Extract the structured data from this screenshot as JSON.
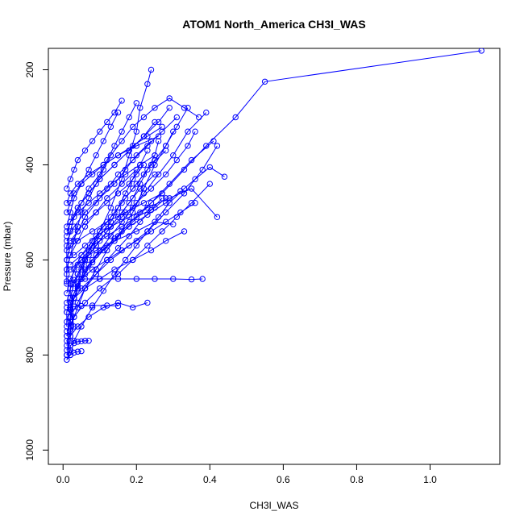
{
  "chart_data": {
    "type": "line",
    "title": "ATOM1 North_America CH3I_WAS",
    "xlabel": "CH3I_WAS",
    "ylabel": "Pressure (mbar)",
    "xlim": [
      -0.04,
      1.19
    ],
    "ylim": [
      1030,
      155
    ],
    "y_reversed": true,
    "x_ticks": [
      0.0,
      0.2,
      0.4,
      0.6,
      0.8,
      1.0
    ],
    "x_tick_labels": [
      "0.0",
      "0.2",
      "0.4",
      "0.6",
      "0.8",
      "1.0"
    ],
    "y_ticks": [
      200,
      400,
      600,
      800,
      1000
    ],
    "y_tick_labels": [
      "200",
      "400",
      "600",
      "800",
      "1000"
    ],
    "grid": false,
    "legend": "none",
    "series_color": "#0000ff",
    "marker": "open-circle",
    "series": [
      {
        "x": [
          0.01,
          0.02,
          0.01,
          0.03,
          0.02,
          0.04,
          0.05,
          0.07,
          0.1,
          0.13,
          0.16,
          0.18,
          0.2,
          0.21,
          0.23,
          0.24
        ],
        "y": [
          810,
          790,
          770,
          740,
          700,
          660,
          610,
          580,
          540,
          490,
          430,
          380,
          330,
          280,
          230,
          200
        ]
      },
      {
        "x": [
          0.01,
          0.02,
          0.02,
          0.04,
          0.06,
          0.09,
          0.12,
          0.15,
          0.19,
          0.22,
          0.25,
          0.28,
          0.31,
          0.34
        ],
        "y": [
          800,
          770,
          740,
          700,
          660,
          620,
          580,
          550,
          500,
          450,
          400,
          360,
          320,
          280
        ]
      },
      {
        "x": [
          0.01,
          0.02,
          0.02,
          0.03,
          0.05,
          0.08,
          0.12,
          0.16,
          0.21,
          0.27,
          0.33,
          0.39,
          0.47,
          0.55,
          1.14
        ],
        "y": [
          790,
          760,
          720,
          680,
          640,
          600,
          570,
          540,
          500,
          460,
          410,
          360,
          300,
          225,
          160
        ]
      },
      {
        "x": [
          0.01,
          0.02,
          0.03,
          0.02,
          0.04,
          0.06,
          0.09,
          0.14,
          0.19,
          0.24,
          0.29,
          0.35,
          0.41
        ],
        "y": [
          780,
          750,
          720,
          690,
          650,
          620,
          590,
          560,
          520,
          480,
          440,
          390,
          350
        ]
      },
      {
        "x": [
          0.01,
          0.02,
          0.02,
          0.03,
          0.05,
          0.07,
          0.1,
          0.13,
          0.16,
          0.19,
          0.22,
          0.26,
          0.3,
          0.34,
          0.39
        ],
        "y": [
          760,
          730,
          700,
          670,
          640,
          610,
          580,
          550,
          520,
          490,
          460,
          420,
          380,
          330,
          290
        ]
      },
      {
        "x": [
          0.02,
          0.03,
          0.05,
          0.08,
          0.11,
          0.14,
          0.17,
          0.2,
          0.23,
          0.26,
          0.29,
          0.33,
          0.36,
          0.4,
          0.44
        ],
        "y": [
          800,
          770,
          740,
          700,
          665,
          630,
          600,
          570,
          540,
          510,
          480,
          450,
          430,
          405,
          425
        ]
      },
      {
        "x": [
          0.01,
          0.01,
          0.02,
          0.02,
          0.03,
          0.05,
          0.08,
          0.11,
          0.14,
          0.17,
          0.2,
          0.24,
          0.28
        ],
        "y": [
          740,
          710,
          680,
          650,
          620,
          590,
          560,
          530,
          500,
          470,
          440,
          400,
          370
        ]
      },
      {
        "x": [
          0.01,
          0.02,
          0.04,
          0.06,
          0.09,
          0.12,
          0.15,
          0.18,
          0.21,
          0.25
        ],
        "y": [
          690,
          660,
          630,
          600,
          570,
          540,
          510,
          480,
          450,
          420
        ]
      },
      {
        "x": [
          0.02,
          0.04,
          0.06,
          0.09,
          0.12,
          0.15,
          0.18,
          0.21,
          0.24,
          0.27
        ],
        "y": [
          720,
          690,
          660,
          630,
          600,
          575,
          550,
          520,
          495,
          470
        ]
      },
      {
        "x": [
          0.01,
          0.02,
          0.03,
          0.04,
          0.06,
          0.08,
          0.11,
          0.14,
          0.18,
          0.23,
          0.28,
          0.32
        ],
        "y": [
          730,
          705,
          680,
          655,
          630,
          605,
          580,
          555,
          530,
          505,
          480,
          455
        ]
      },
      {
        "x": [
          0.01,
          0.01,
          0.02,
          0.03,
          0.04,
          0.05,
          0.07,
          0.09,
          0.11,
          0.13,
          0.16,
          0.19,
          0.22,
          0.25,
          0.29,
          0.33,
          0.37
        ],
        "y": [
          650,
          620,
          590,
          560,
          530,
          500,
          470,
          440,
          410,
          380,
          350,
          320,
          300,
          280,
          260,
          280,
          300
        ]
      },
      {
        "x": [
          0.01,
          0.02,
          0.03,
          0.05,
          0.07,
          0.1,
          0.13,
          0.16,
          0.19,
          0.21,
          0.23,
          0.25,
          0.26
        ],
        "y": [
          710,
          680,
          650,
          620,
          590,
          560,
          530,
          500,
          470,
          440,
          410,
          380,
          350
        ]
      },
      {
        "x": [
          0.01,
          0.02,
          0.04,
          0.07,
          0.1,
          0.13,
          0.15,
          0.17,
          0.19,
          0.21,
          0.23
        ],
        "y": [
          670,
          640,
          610,
          580,
          550,
          520,
          490,
          460,
          430,
          400,
          370
        ]
      },
      {
        "x": [
          0.01,
          0.01,
          0.02,
          0.04,
          0.06,
          0.09,
          0.12,
          0.15,
          0.19,
          0.23,
          0.27,
          0.31
        ],
        "y": [
          630,
          600,
          570,
          540,
          510,
          480,
          450,
          420,
          390,
          360,
          330,
          300
        ]
      },
      {
        "x": [
          0.02,
          0.05,
          0.09,
          0.13,
          0.18,
          0.23,
          0.28,
          0.33,
          0.38,
          0.42
        ],
        "y": [
          690,
          660,
          630,
          600,
          570,
          540,
          500,
          460,
          410,
          360
        ]
      },
      {
        "x": [
          0.01,
          0.03,
          0.06,
          0.1,
          0.15,
          0.19,
          0.23,
          0.27,
          0.31,
          0.35,
          0.4
        ],
        "y": [
          750,
          720,
          690,
          660,
          630,
          600,
          570,
          540,
          510,
          480,
          440
        ]
      },
      {
        "x": [
          0.01,
          0.02,
          0.03,
          0.05,
          0.06,
          0.08,
          0.1,
          0.13,
          0.16,
          0.19,
          0.22,
          0.25,
          0.28,
          0.3
        ],
        "y": [
          760,
          720,
          680,
          640,
          600,
          570,
          540,
          510,
          480,
          450,
          420,
          390,
          360,
          330
        ]
      },
      {
        "x": [
          0.01,
          0.01,
          0.02,
          0.03,
          0.05,
          0.07,
          0.1,
          0.12,
          0.14,
          0.16,
          0.18,
          0.2
        ],
        "y": [
          600,
          570,
          540,
          510,
          480,
          450,
          420,
          390,
          360,
          330,
          300,
          270
        ]
      },
      {
        "x": [
          0.02,
          0.04,
          0.06,
          0.09,
          0.12,
          0.16,
          0.2,
          0.24,
          0.28,
          0.31,
          0.34,
          0.36
        ],
        "y": [
          660,
          630,
          600,
          570,
          540,
          510,
          480,
          450,
          420,
          390,
          360,
          330
        ]
      },
      {
        "x": [
          0.01,
          0.02,
          0.02,
          0.03,
          0.04,
          0.05,
          0.06,
          0.07
        ],
        "y": [
          800,
          790,
          780,
          775,
          772,
          771,
          770,
          770
        ]
      },
      {
        "x": [
          0.01,
          0.02,
          0.03,
          0.04,
          0.05
        ],
        "y": [
          810,
          800,
          795,
          793,
          792
        ]
      },
      {
        "x": [
          0.01,
          0.02,
          0.03,
          0.05,
          0.08,
          0.12,
          0.15
        ],
        "y": [
          700,
          699,
          698,
          697,
          696,
          696,
          697
        ]
      },
      {
        "x": [
          0.01,
          0.03,
          0.06,
          0.1,
          0.15,
          0.2,
          0.25,
          0.3,
          0.35,
          0.38
        ],
        "y": [
          645,
          642,
          640,
          640,
          640,
          640,
          640,
          640,
          641,
          640
        ]
      },
      {
        "x": [
          0.01,
          0.02,
          0.04,
          0.07,
          0.1,
          0.14,
          0.18,
          0.22,
          0.25
        ],
        "y": [
          550,
          520,
          490,
          460,
          430,
          400,
          370,
          340,
          310
        ]
      },
      {
        "x": [
          0.01,
          0.02,
          0.03,
          0.04,
          0.06,
          0.08,
          0.1,
          0.12,
          0.14,
          0.16
        ],
        "y": [
          450,
          430,
          410,
          390,
          370,
          350,
          330,
          310,
          290,
          265
        ]
      },
      {
        "x": [
          0.02,
          0.04,
          0.07,
          0.1,
          0.14,
          0.18,
          0.22,
          0.26,
          0.29
        ],
        "y": [
          520,
          490,
          460,
          430,
          400,
          370,
          340,
          310,
          280
        ]
      },
      {
        "x": [
          0.01,
          0.03,
          0.06,
          0.1,
          0.14,
          0.17,
          0.2,
          0.24
        ],
        "y": [
          560,
          530,
          500,
          470,
          440,
          410,
          380,
          350
        ]
      },
      {
        "x": [
          0.03,
          0.06,
          0.09,
          0.13,
          0.18,
          0.23,
          0.29,
          0.35,
          0.42
        ],
        "y": [
          590,
          570,
          550,
          530,
          510,
          490,
          470,
          450,
          510
        ]
      },
      {
        "x": [
          0.02,
          0.05,
          0.09,
          0.14,
          0.2,
          0.25,
          0.3
        ],
        "y": [
          620,
          600,
          580,
          560,
          540,
          520,
          525
        ]
      },
      {
        "x": [
          0.01,
          0.04,
          0.08,
          0.12,
          0.17,
          0.22,
          0.27
        ],
        "y": [
          580,
          560,
          540,
          520,
          500,
          480,
          460
        ]
      },
      {
        "x": [
          0.02,
          0.05,
          0.08,
          0.12,
          0.16,
          0.2,
          0.25,
          0.28
        ],
        "y": [
          610,
          590,
          570,
          550,
          530,
          510,
          490,
          470
        ]
      },
      {
        "x": [
          0.01,
          0.02,
          0.04,
          0.07,
          0.1,
          0.13,
          0.17,
          0.21,
          0.25
        ],
        "y": [
          540,
          520,
          500,
          480,
          460,
          440,
          420,
          400,
          380
        ]
      },
      {
        "x": [
          0.01,
          0.02,
          0.03,
          0.05,
          0.08,
          0.11,
          0.15,
          0.2,
          0.26
        ],
        "y": [
          500,
          480,
          460,
          440,
          420,
          400,
          380,
          360,
          340
        ]
      },
      {
        "x": [
          0.03,
          0.06,
          0.1,
          0.14,
          0.19,
          0.24,
          0.28,
          0.33
        ],
        "y": [
          680,
          660,
          640,
          620,
          600,
          580,
          560,
          540
        ]
      },
      {
        "x": [
          0.02,
          0.04,
          0.07,
          0.11,
          0.15,
          0.19,
          0.23
        ],
        "y": [
          760,
          740,
          720,
          700,
          690,
          700,
          690
        ]
      },
      {
        "x": [
          0.01,
          0.02,
          0.04,
          0.07,
          0.11,
          0.15,
          0.19,
          0.23,
          0.27
        ],
        "y": [
          480,
          460,
          440,
          420,
          400,
          380,
          360,
          340,
          320
        ]
      },
      {
        "x": [
          0.02,
          0.04,
          0.06,
          0.09,
          0.12,
          0.15,
          0.18,
          0.2,
          0.22
        ],
        "y": [
          560,
          540,
          520,
          500,
          480,
          460,
          440,
          420,
          400
        ]
      },
      {
        "x": [
          0.01,
          0.02,
          0.03,
          0.05,
          0.07,
          0.09,
          0.11,
          0.13,
          0.15
        ],
        "y": [
          530,
          500,
          470,
          440,
          410,
          380,
          350,
          320,
          290
        ]
      },
      {
        "x": [
          0.05,
          0.08,
          0.12,
          0.16,
          0.2,
          0.24,
          0.28,
          0.32,
          0.36
        ],
        "y": [
          640,
          620,
          600,
          580,
          560,
          540,
          520,
          500,
          480
        ]
      },
      {
        "x": [
          0.01,
          0.02,
          0.04,
          0.06,
          0.09,
          0.12,
          0.16,
          0.2
        ],
        "y": [
          620,
          590,
          560,
          530,
          500,
          470,
          440,
          410
        ]
      }
    ]
  }
}
